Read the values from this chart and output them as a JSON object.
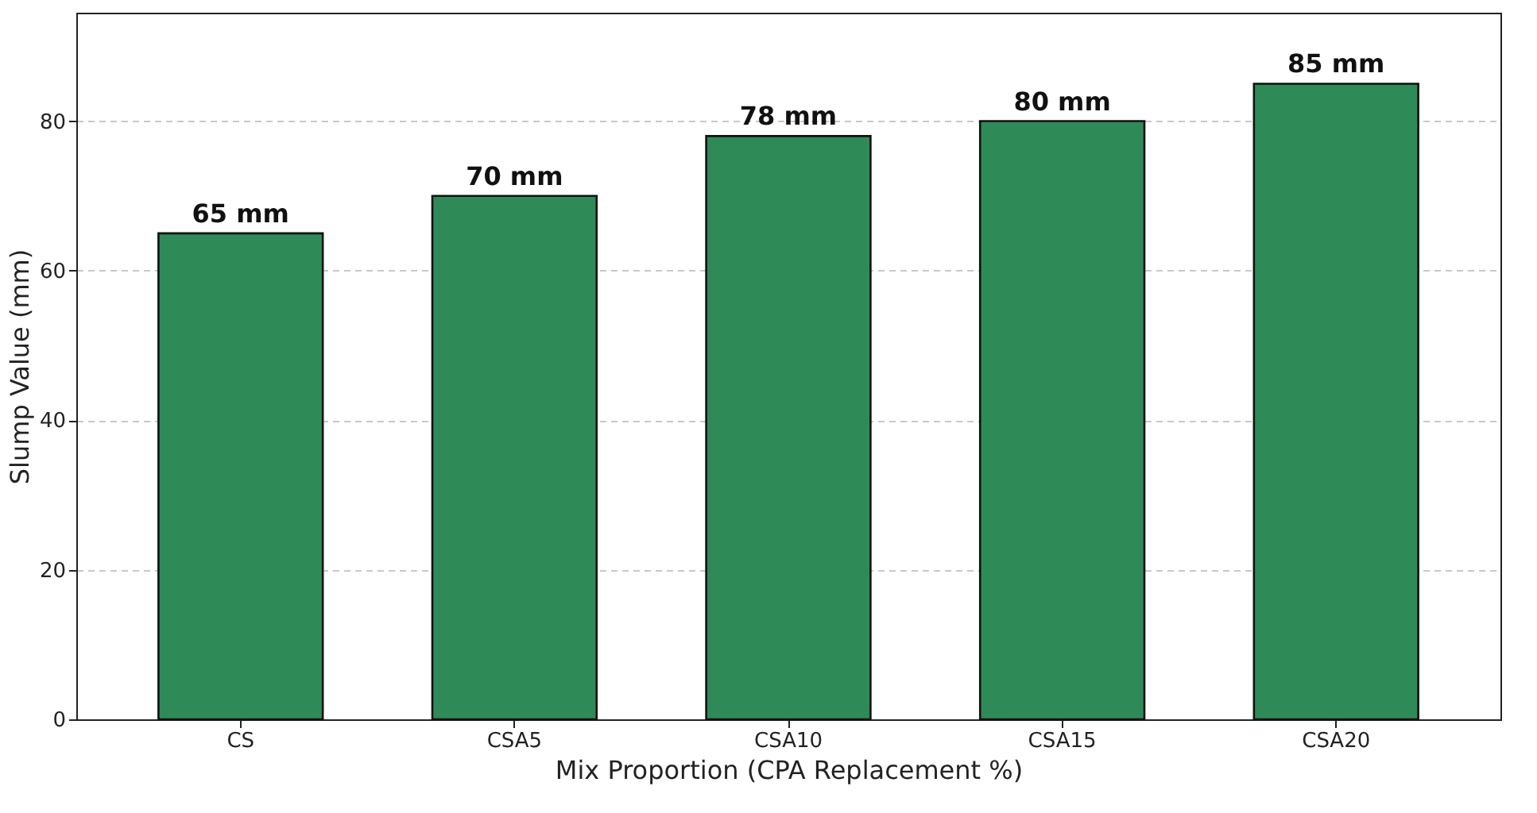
{
  "chart_data": {
    "type": "bar",
    "xlabel": "Mix Proportion (CPA Replacement %)",
    "ylabel": "Slump Value (mm)",
    "categories": [
      "CS",
      "CSA5",
      "CSA10",
      "CSA15",
      "CSA20"
    ],
    "values": [
      65,
      70,
      78,
      80,
      85
    ],
    "value_labels": [
      "65 mm",
      "70 mm",
      "78 mm",
      "80 mm",
      "85 mm"
    ],
    "color": "#2e8b57",
    "ylim": [
      0,
      94.5
    ],
    "yticks": [
      0,
      20,
      40,
      60,
      80
    ],
    "grid": "y"
  }
}
